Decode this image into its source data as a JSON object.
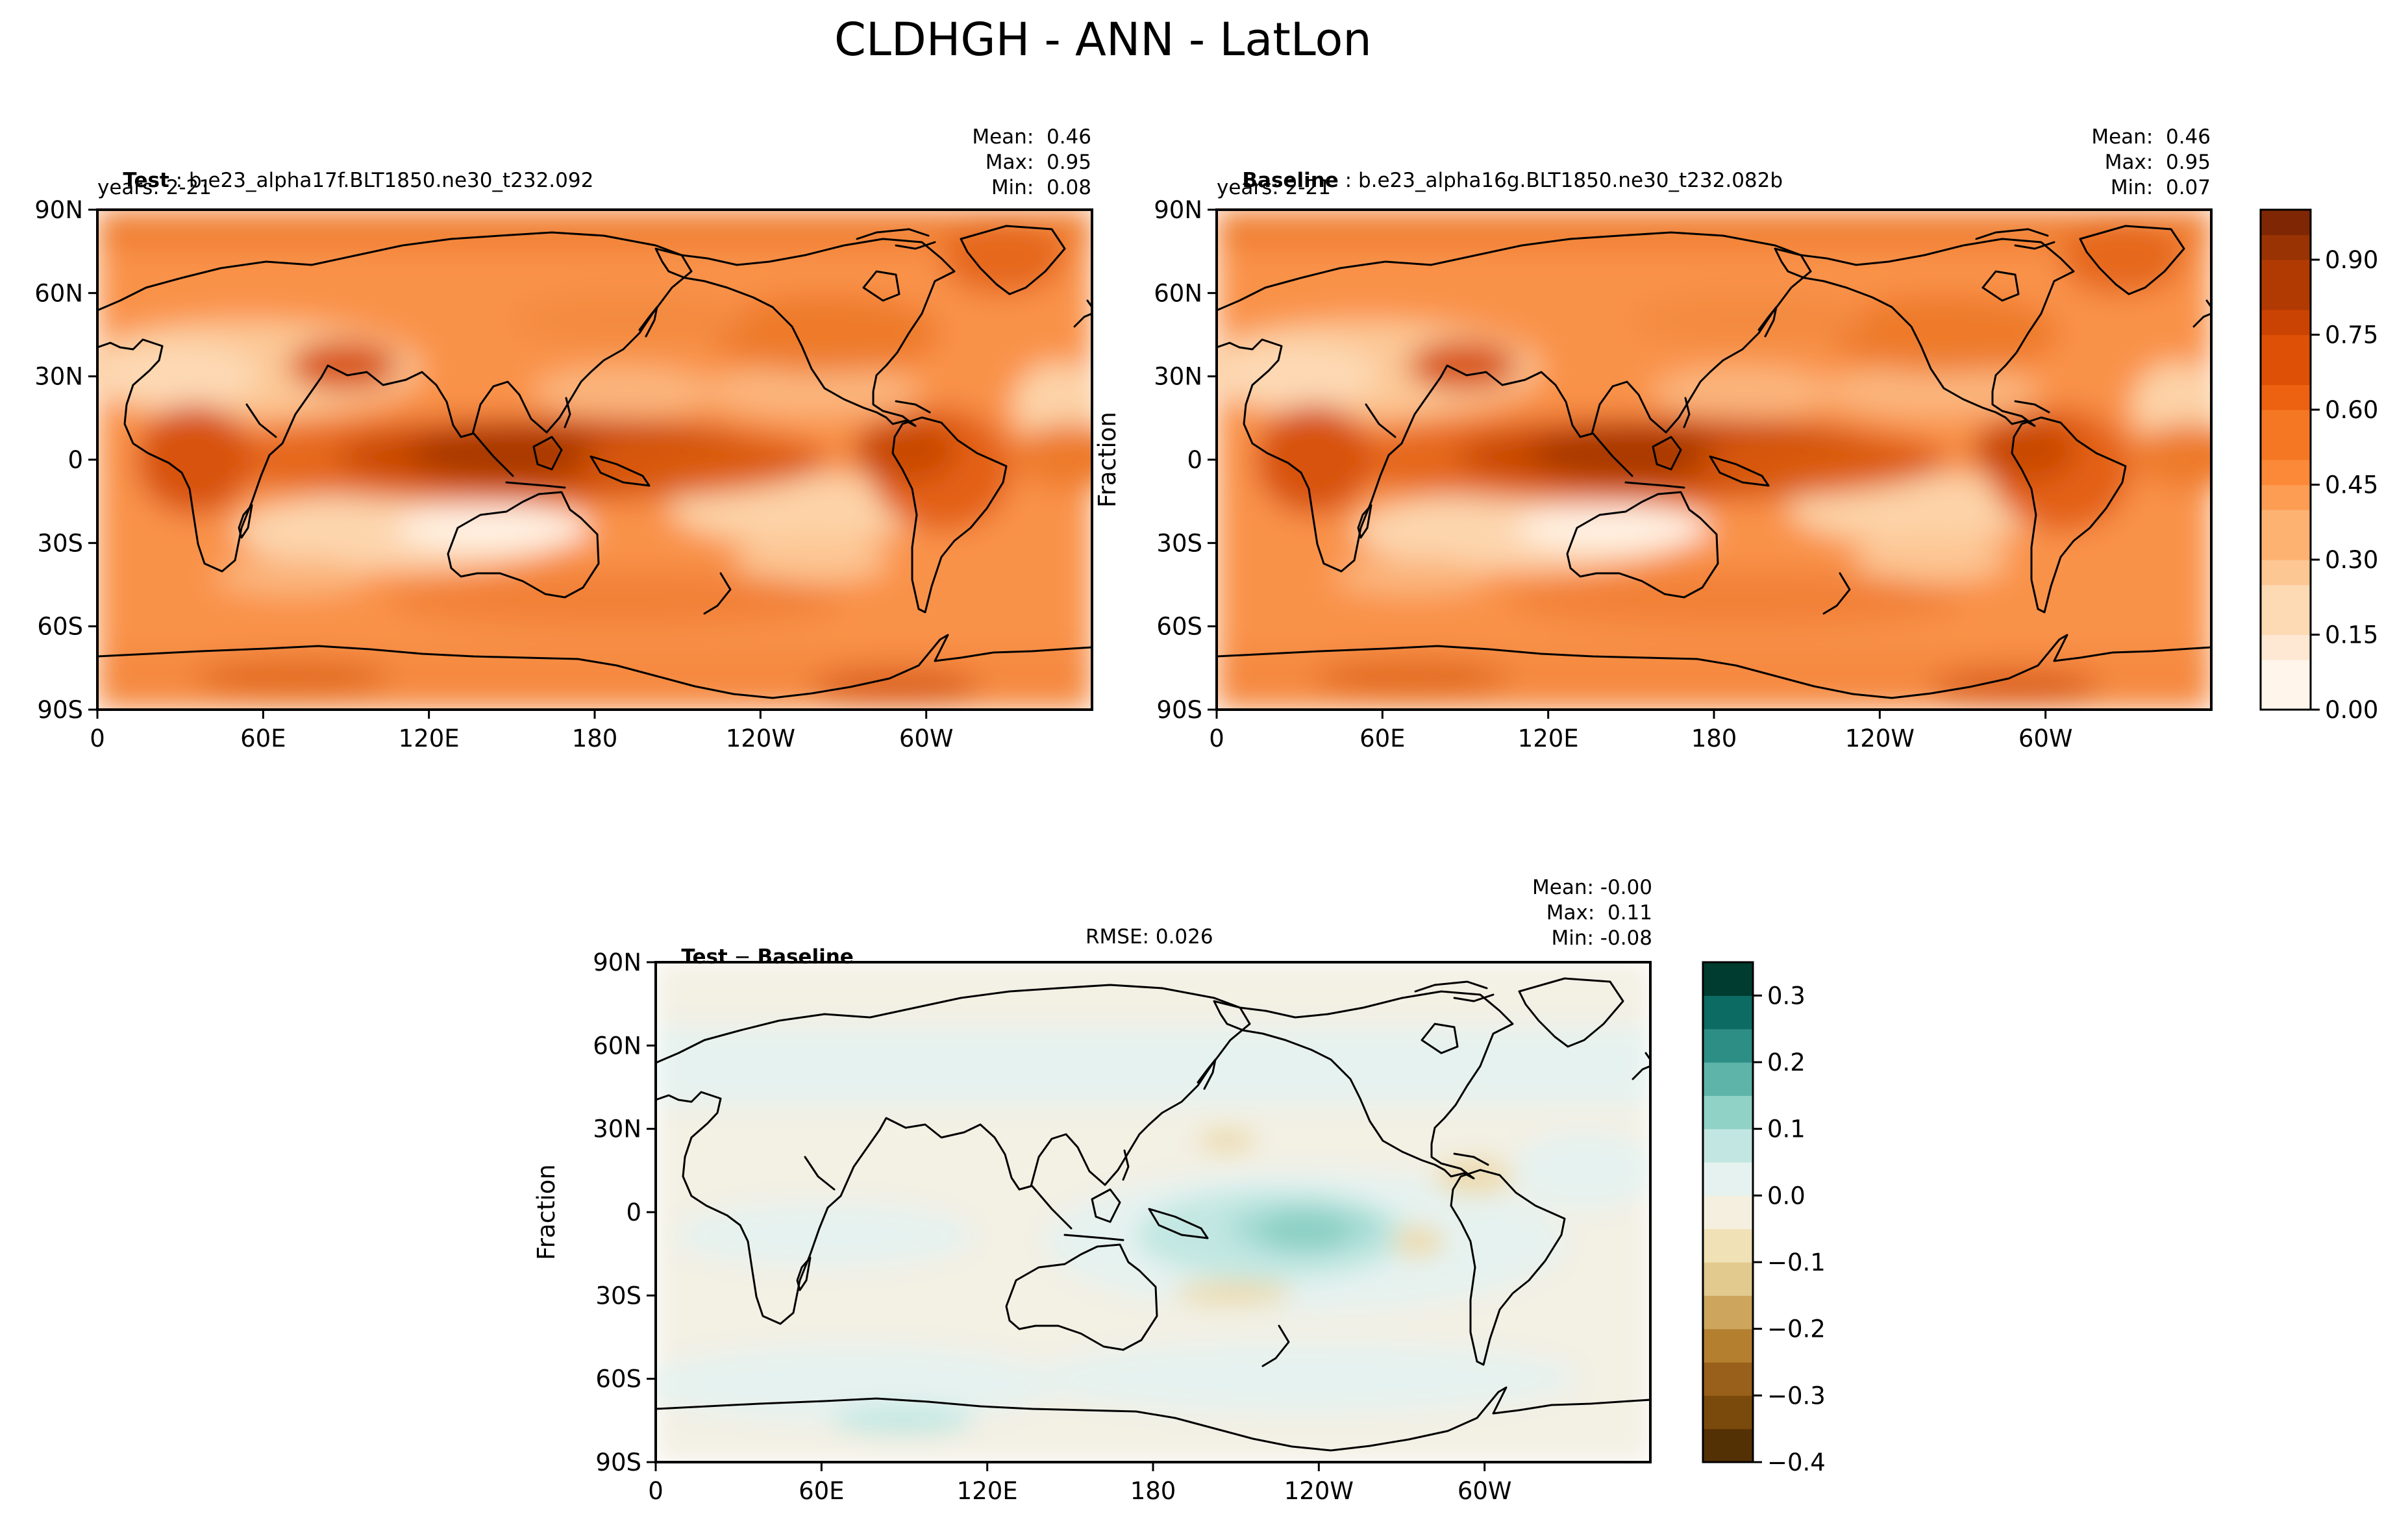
{
  "figure": {
    "title": "CLDHGH - ANN - LatLon"
  },
  "panels": {
    "test": {
      "label": "Test",
      "case": "b.e23_alpha17f.BLT1850.ne30_t232.092",
      "years": "years: 2-21",
      "stats": {
        "mean": "Mean:  0.46",
        "max": "Max:  0.95",
        "min": "Min:  0.08"
      }
    },
    "baseline": {
      "label": "Baseline",
      "case": "b.e23_alpha16g.BLT1850.ne30_t232.082b",
      "years": "years: 2-21",
      "ylabel": "Fraction",
      "stats": {
        "mean": "Mean:  0.46",
        "max": "Max:  0.95",
        "min": "Min:  0.07"
      }
    },
    "diff": {
      "label_test": "Test",
      "label_sep": " − ",
      "label_baseline": "Baseline",
      "rmse": "RMSE: 0.026",
      "ylabel": "Fraction",
      "stats": {
        "mean": "Mean: -0.00",
        "max": "Max:  0.11",
        "min": "Min: -0.08"
      }
    }
  },
  "chart_data": [
    {
      "type": "heatmap",
      "name": "Test",
      "projection": "PlateCarree, central longitude 180",
      "xticks": [
        "0",
        "60E",
        "120E",
        "180",
        "120W",
        "60W"
      ],
      "yticks": [
        "90N",
        "60N",
        "30N",
        "0",
        "30S",
        "60S",
        "90S"
      ],
      "value_range": [
        0.08,
        0.95
      ],
      "mean": 0.46,
      "colormap": "Oranges"
    },
    {
      "type": "heatmap",
      "name": "Baseline",
      "projection": "PlateCarree, central longitude 180",
      "xticks": [
        "0",
        "60E",
        "120E",
        "180",
        "120W",
        "60W"
      ],
      "yticks": [
        "90N",
        "60N",
        "30N",
        "0",
        "30S",
        "60S",
        "90S"
      ],
      "value_range": [
        0.07,
        0.95
      ],
      "mean": 0.46,
      "colormap": "Oranges",
      "colorbar": {
        "ticks": [
          "0.00",
          "0.15",
          "0.30",
          "0.45",
          "0.60",
          "0.75",
          "0.90"
        ],
        "range": [
          0.0,
          1.0
        ],
        "levels": 20
      }
    },
    {
      "type": "heatmap",
      "name": "Test − Baseline",
      "projection": "PlateCarree, central longitude 180",
      "xticks": [
        "0",
        "60E",
        "120E",
        "180",
        "120W",
        "60W"
      ],
      "yticks": [
        "90N",
        "60N",
        "30N",
        "0",
        "30S",
        "60S",
        "90S"
      ],
      "value_range": [
        -0.08,
        0.11
      ],
      "mean": -0.0,
      "rmse": 0.026,
      "colormap": "BrBG",
      "colorbar": {
        "ticks": [
          "0.3",
          "0.2",
          "0.1",
          "0.0",
          "−0.1",
          "−0.2",
          "−0.3",
          "−0.4"
        ],
        "range": [
          -0.4,
          0.35
        ],
        "levels": 15
      }
    }
  ]
}
